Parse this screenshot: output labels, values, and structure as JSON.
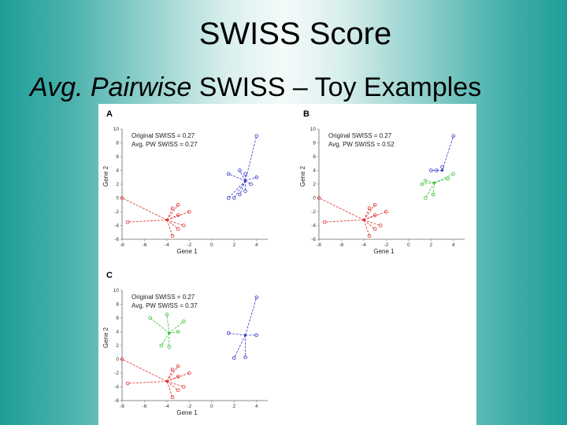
{
  "slide": {
    "title": "SWISS Score",
    "subtitle_italic": "Avg. Pairwise",
    "subtitle_rest": " SWISS – Toy Examples"
  },
  "colors": {
    "red": "#e03030",
    "blue": "#3838c8",
    "green": "#30c030"
  },
  "figure": {
    "panels": [
      {
        "letter": "A",
        "legend": [
          "Original SWISS = 0.27",
          "Avg. PW SWISS = 0.27"
        ],
        "xlabel": "Gene 1",
        "ylabel": "Gene 2",
        "xticks": [
          "-8",
          "-6",
          "-4",
          "-2",
          "0",
          "2",
          "4"
        ],
        "yticks": [
          "10",
          "8",
          "6",
          "4",
          "2",
          "0",
          "-2",
          "-4",
          "-6"
        ],
        "xlim": [
          -8,
          5
        ],
        "ylim": [
          -6,
          10
        ],
        "clusters": [
          {
            "color": "red",
            "center": [
              -4,
              -3.2
            ],
            "points": [
              [
                -7.5,
                -3.5
              ],
              [
                -8,
                0
              ],
              [
                -3.5,
                -1.5
              ],
              [
                -2,
                -2
              ],
              [
                -3,
                -2.5
              ],
              [
                -3,
                -4.5
              ],
              [
                -2.5,
                -4
              ],
              [
                -3.5,
                -5.5
              ],
              [
                -3,
                -1
              ]
            ]
          },
          {
            "color": "blue",
            "center": [
              3,
              2.5
            ],
            "points": [
              [
                4,
                9
              ],
              [
                1.5,
                3.5
              ],
              [
                2.5,
                4
              ],
              [
                4,
                3
              ],
              [
                3,
                3.5
              ],
              [
                2,
                0
              ],
              [
                2.5,
                0.5
              ],
              [
                1.5,
                0
              ],
              [
                3.5,
                2
              ],
              [
                3,
                1
              ]
            ]
          }
        ]
      },
      {
        "letter": "B",
        "legend": [
          "Original SWISS = 0.27",
          "Avg. PW SWISS = 0.52"
        ],
        "xlabel": "Gene 1",
        "ylabel": "Gene 2",
        "xticks": [
          "-8",
          "-6",
          "-4",
          "-2",
          "0",
          "2",
          "4"
        ],
        "yticks": [
          "10",
          "8",
          "6",
          "4",
          "2",
          "0",
          "-2",
          "-4",
          "-6"
        ],
        "xlim": [
          -8,
          5
        ],
        "ylim": [
          -6,
          10
        ],
        "clusters": [
          {
            "color": "red",
            "center": [
              -4,
              -3.2
            ],
            "points": [
              [
                -7.5,
                -3.5
              ],
              [
                -8,
                0
              ],
              [
                -3.5,
                -1.5
              ],
              [
                -2,
                -2
              ],
              [
                -3,
                -2.5
              ],
              [
                -3,
                -4.5
              ],
              [
                -2.5,
                -4
              ],
              [
                -3.5,
                -5.5
              ],
              [
                -3,
                -1
              ]
            ]
          },
          {
            "color": "blue",
            "center": [
              3,
              4
            ],
            "points": [
              [
                4,
                9
              ],
              [
                2,
                4
              ],
              [
                3,
                4.5
              ],
              [
                2.5,
                4
              ]
            ]
          },
          {
            "color": "green",
            "center": [
              2.3,
              2.2
            ],
            "points": [
              [
                4,
                3.5
              ],
              [
                1.5,
                2.5
              ],
              [
                1.5,
                0
              ],
              [
                2.2,
                0.5
              ],
              [
                1.2,
                2
              ],
              [
                3.5,
                2.8
              ]
            ]
          }
        ]
      },
      {
        "letter": "C",
        "legend": [
          "Original SWISS = 0.27",
          "Avg. PW SWISS = 0.37"
        ],
        "xlabel": "Gene 1",
        "ylabel": "Gene 2",
        "xticks": [
          "-8",
          "-6",
          "-4",
          "-2",
          "0",
          "2",
          "4"
        ],
        "yticks": [
          "10",
          "8",
          "6",
          "4",
          "2",
          "0",
          "-2",
          "-4",
          "-6"
        ],
        "xlim": [
          -8,
          5
        ],
        "ylim": [
          -6,
          10
        ],
        "clusters": [
          {
            "color": "red",
            "center": [
              -4,
              -3.2
            ],
            "points": [
              [
                -7.5,
                -3.5
              ],
              [
                -8,
                0
              ],
              [
                -3.5,
                -1.5
              ],
              [
                -2,
                -2
              ],
              [
                -3,
                -2.5
              ],
              [
                -3,
                -4.5
              ],
              [
                -2.5,
                -4
              ],
              [
                -3.5,
                -5.5
              ],
              [
                -3,
                -1
              ]
            ]
          },
          {
            "color": "green",
            "center": [
              -3.8,
              3.8
            ],
            "points": [
              [
                -5.5,
                6
              ],
              [
                -4,
                6.5
              ],
              [
                -2.5,
                5.5
              ],
              [
                -4.5,
                2
              ],
              [
                -3.8,
                1.8
              ],
              [
                -3,
                4
              ]
            ]
          },
          {
            "color": "blue",
            "center": [
              3,
              3.5
            ],
            "points": [
              [
                4,
                9
              ],
              [
                1.5,
                3.8
              ],
              [
                4,
                3.5
              ],
              [
                2,
                0.2
              ],
              [
                3,
                0.3
              ]
            ]
          }
        ]
      }
    ]
  }
}
